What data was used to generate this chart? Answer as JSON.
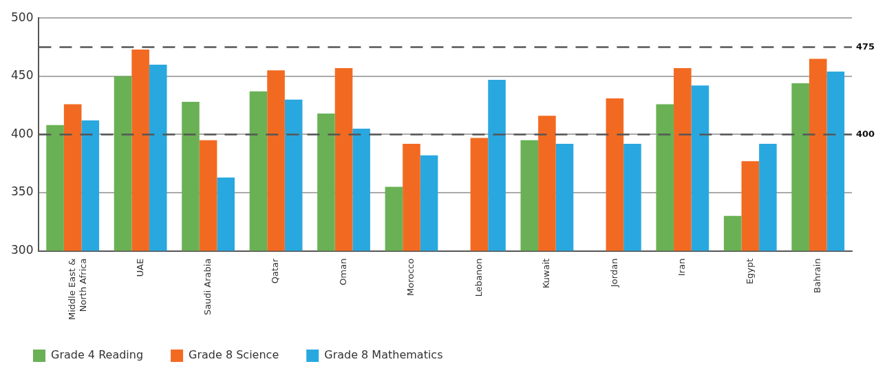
{
  "chart_data": {
    "type": "bar",
    "categories": [
      "Middle East & North Africa",
      "UAE",
      "Saudi Arabia",
      "Qatar",
      "Oman",
      "Morocco",
      "Lebanon",
      "Kuwait",
      "Jordan",
      "Iran",
      "Egypt",
      "Bahrain"
    ],
    "series": [
      {
        "name": "Grade 4 Reading",
        "color": "#6ab155",
        "values": [
          408,
          450,
          428,
          437,
          418,
          355,
          null,
          395,
          null,
          426,
          330,
          444
        ]
      },
      {
        "name": "Grade 8 Science",
        "color": "#f26a21",
        "values": [
          426,
          473,
          395,
          455,
          457,
          392,
          397,
          416,
          431,
          457,
          377,
          465
        ]
      },
      {
        "name": "Grade 8 Mathematics",
        "color": "#29a8e0",
        "values": [
          412,
          460,
          363,
          430,
          405,
          382,
          447,
          392,
          392,
          442,
          392,
          454
        ]
      }
    ],
    "ylim": [
      300,
      500
    ],
    "yticks": [
      300,
      350,
      400,
      450,
      500
    ],
    "grid": "y",
    "legend": "bottom",
    "ref_lines": [
      {
        "axis": "y",
        "value": 475,
        "label": "475",
        "color": "#555555",
        "line_style": "dashed"
      },
      {
        "axis": "y",
        "value": 400,
        "label": "400",
        "color": "#555555",
        "line_style": "dashed"
      }
    ]
  }
}
